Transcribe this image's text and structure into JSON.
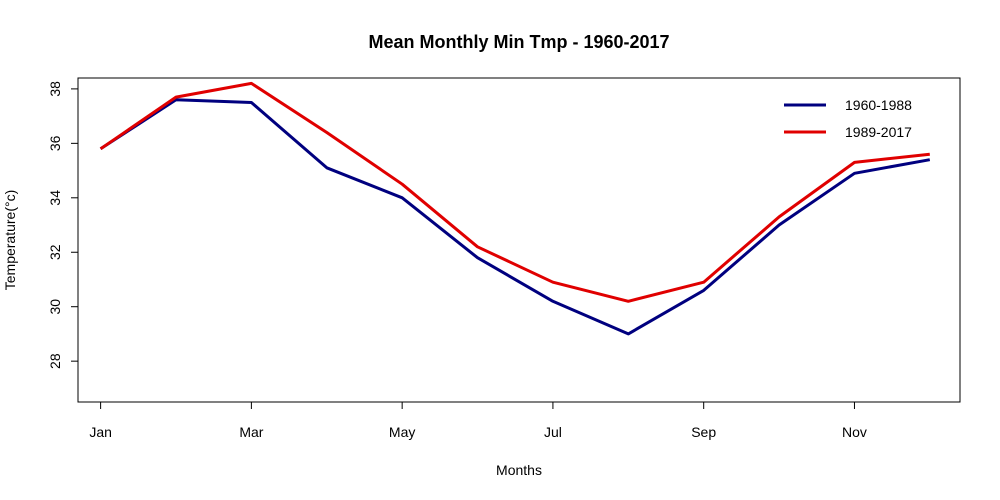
{
  "chart_data": {
    "type": "line",
    "title": "Mean Monthly Min Tmp - 1960-2017",
    "xlabel": "Months",
    "ylabel": "Temperature(°c)",
    "x": [
      1,
      2,
      3,
      4,
      5,
      6,
      7,
      8,
      9,
      10,
      11,
      12
    ],
    "xticks": [
      {
        "at": 1,
        "label": "Jan"
      },
      {
        "at": 3,
        "label": "Mar"
      },
      {
        "at": 5,
        "label": "May"
      },
      {
        "at": 7,
        "label": "Jul"
      },
      {
        "at": 9,
        "label": "Sep"
      },
      {
        "at": 11,
        "label": "Nov"
      }
    ],
    "yticks": [
      28,
      30,
      32,
      34,
      36,
      38
    ],
    "xlim": [
      0.7,
      12.4
    ],
    "ylim": [
      26.5,
      38.4
    ],
    "legend_position": "top-right",
    "series": [
      {
        "name": "1960-1988",
        "color": "#00007f",
        "values": [
          35.8,
          37.6,
          37.5,
          35.1,
          34.0,
          31.8,
          30.2,
          29.0,
          30.6,
          33.0,
          34.9,
          35.4
        ]
      },
      {
        "name": "1989-2017",
        "color": "#e00000",
        "values": [
          35.8,
          37.7,
          38.2,
          36.4,
          34.5,
          32.2,
          30.9,
          30.2,
          30.9,
          33.3,
          35.3,
          35.6
        ]
      }
    ]
  }
}
